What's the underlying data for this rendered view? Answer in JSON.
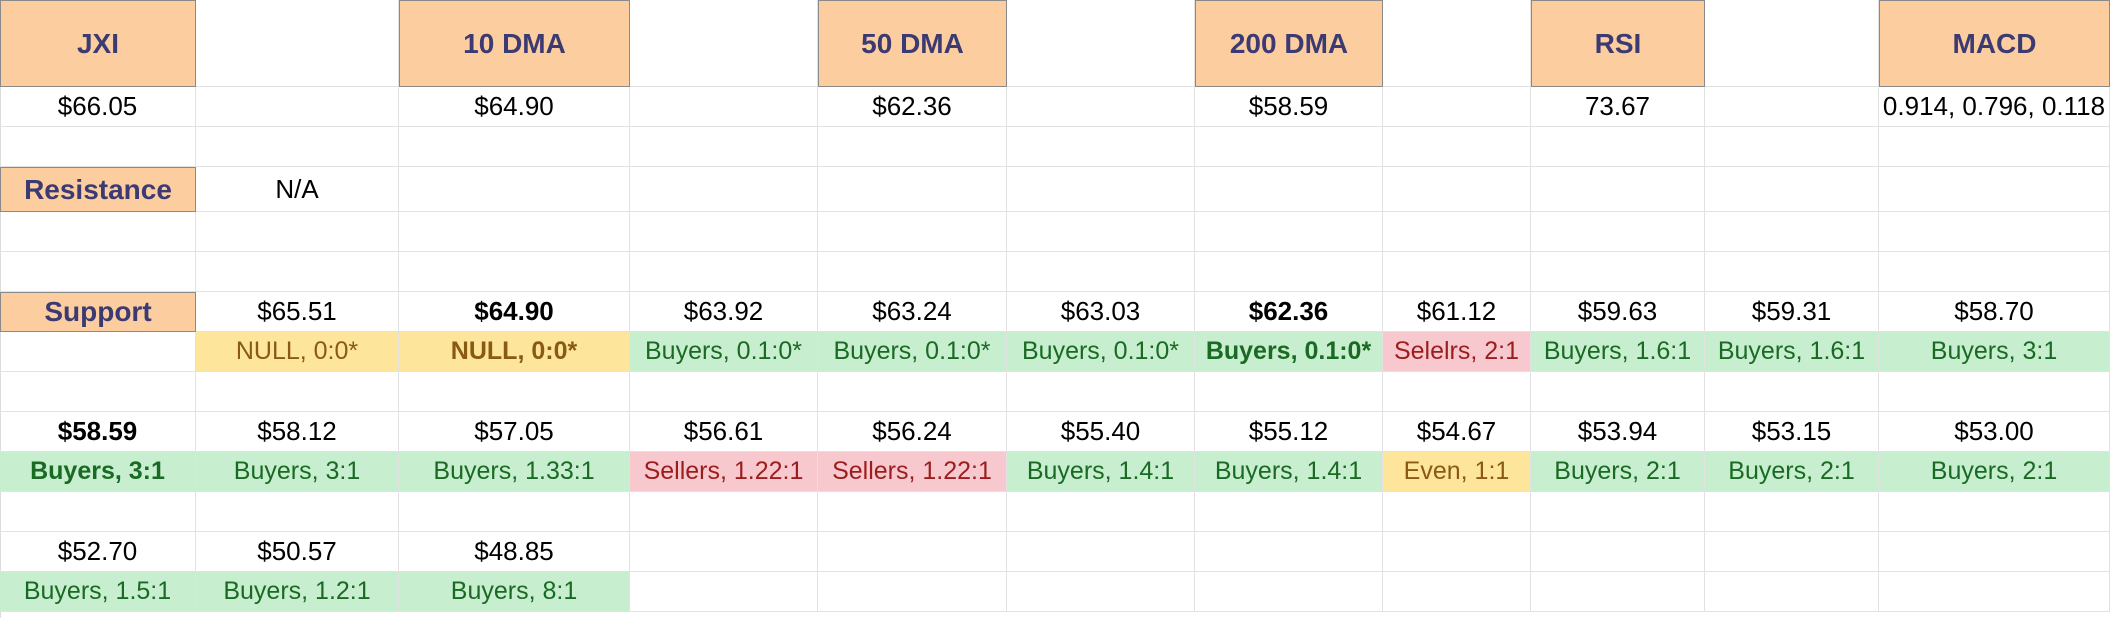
{
  "headers": {
    "ticker": "JXI",
    "dma10": "10 DMA",
    "dma50": "50 DMA",
    "dma200": "200 DMA",
    "rsi": "RSI",
    "macd": "MACD"
  },
  "values": {
    "price": "$66.05",
    "dma10": "$64.90",
    "dma50": "$62.36",
    "dma200": "$58.59",
    "rsi": "73.67",
    "macd": "0.914, 0.796, 0.118"
  },
  "resistance": {
    "label": "Resistance",
    "value": "N/A"
  },
  "support": {
    "label": "Support",
    "row1_prices": [
      "$65.51",
      "$64.90",
      "$63.92",
      "$63.24",
      "$63.03",
      "$62.36",
      "$61.12",
      "$59.63",
      "$59.31",
      "$58.70"
    ],
    "row1_ratios": [
      "NULL, 0:0*",
      "NULL, 0:0*",
      "Buyers, 0.1:0*",
      "Buyers, 0.1:0*",
      "Buyers, 0.1:0*",
      "Buyers, 0.1:0*",
      "Selelrs, 2:1",
      "Buyers, 1.6:1",
      "Buyers, 1.6:1",
      "Buyers, 3:1"
    ],
    "row2_prices": [
      "$58.59",
      "$58.12",
      "$57.05",
      "$56.61",
      "$56.24",
      "$55.40",
      "$55.12",
      "$54.67",
      "$53.94",
      "$53.15",
      "$53.00"
    ],
    "row2_ratios": [
      "Buyers, 3:1",
      "Buyers, 3:1",
      "Buyers, 1.33:1",
      "Sellers, 1.22:1",
      "Sellers, 1.22:1",
      "Buyers, 1.4:1",
      "Buyers, 1.4:1",
      "Even, 1:1",
      "Buyers, 2:1",
      "Buyers, 2:1",
      "Buyers, 2:1"
    ],
    "row3_prices": [
      "$52.70",
      "$50.57",
      "$48.85"
    ],
    "row3_ratios": [
      "Buyers, 1.5:1",
      "Buyers, 1.2:1",
      "Buyers, 8:1"
    ]
  }
}
